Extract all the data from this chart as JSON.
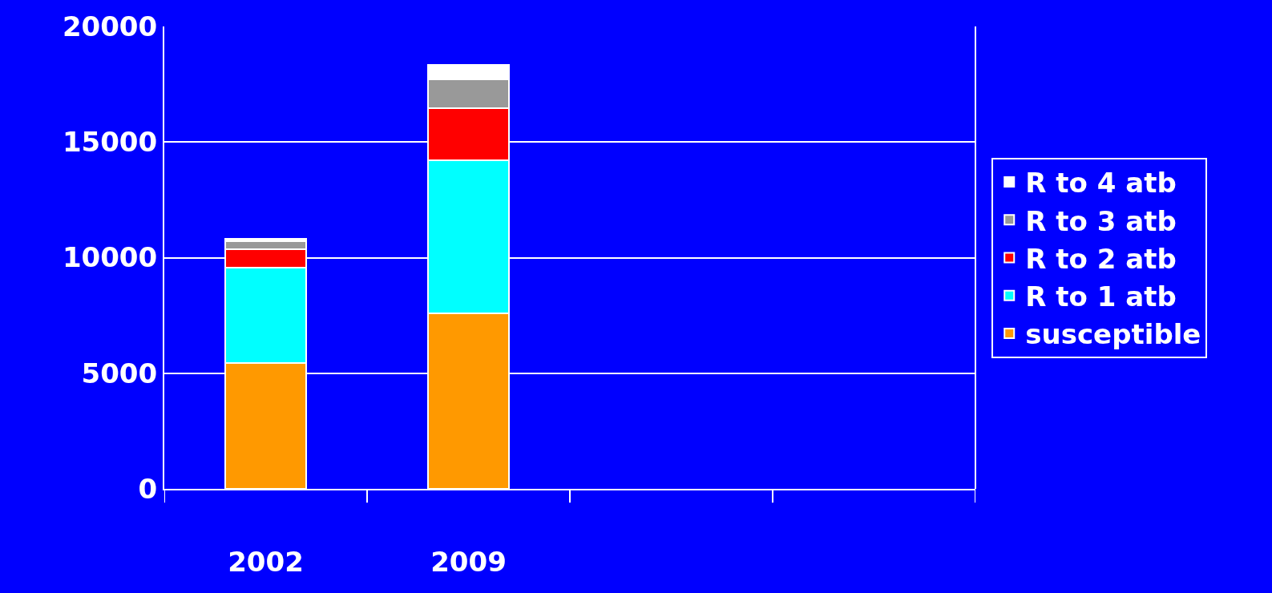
{
  "chart_data": {
    "type": "bar",
    "stacked": true,
    "categories": [
      "2002",
      "2009",
      null,
      null
    ],
    "series": [
      {
        "name": "susceptible",
        "color": "#ff9900",
        "values": [
          5450,
          7600,
          null,
          null
        ]
      },
      {
        "name": "R to 1 atb",
        "color": "#00ffff",
        "values": [
          4100,
          6600,
          null,
          null
        ]
      },
      {
        "name": "R to 2 atb",
        "color": "#ff0000",
        "values": [
          800,
          2250,
          null,
          null
        ]
      },
      {
        "name": "R to 3 atb",
        "color": "#999999",
        "values": [
          350,
          1250,
          null,
          null
        ]
      },
      {
        "name": "R to 4 atb",
        "color": "#ffffff",
        "values": [
          100,
          650,
          null,
          null
        ]
      }
    ],
    "ylim": [
      0,
      20000
    ],
    "yticks": [
      0,
      5000,
      10000,
      15000,
      20000
    ],
    "grid": "y",
    "legend": "right"
  }
}
